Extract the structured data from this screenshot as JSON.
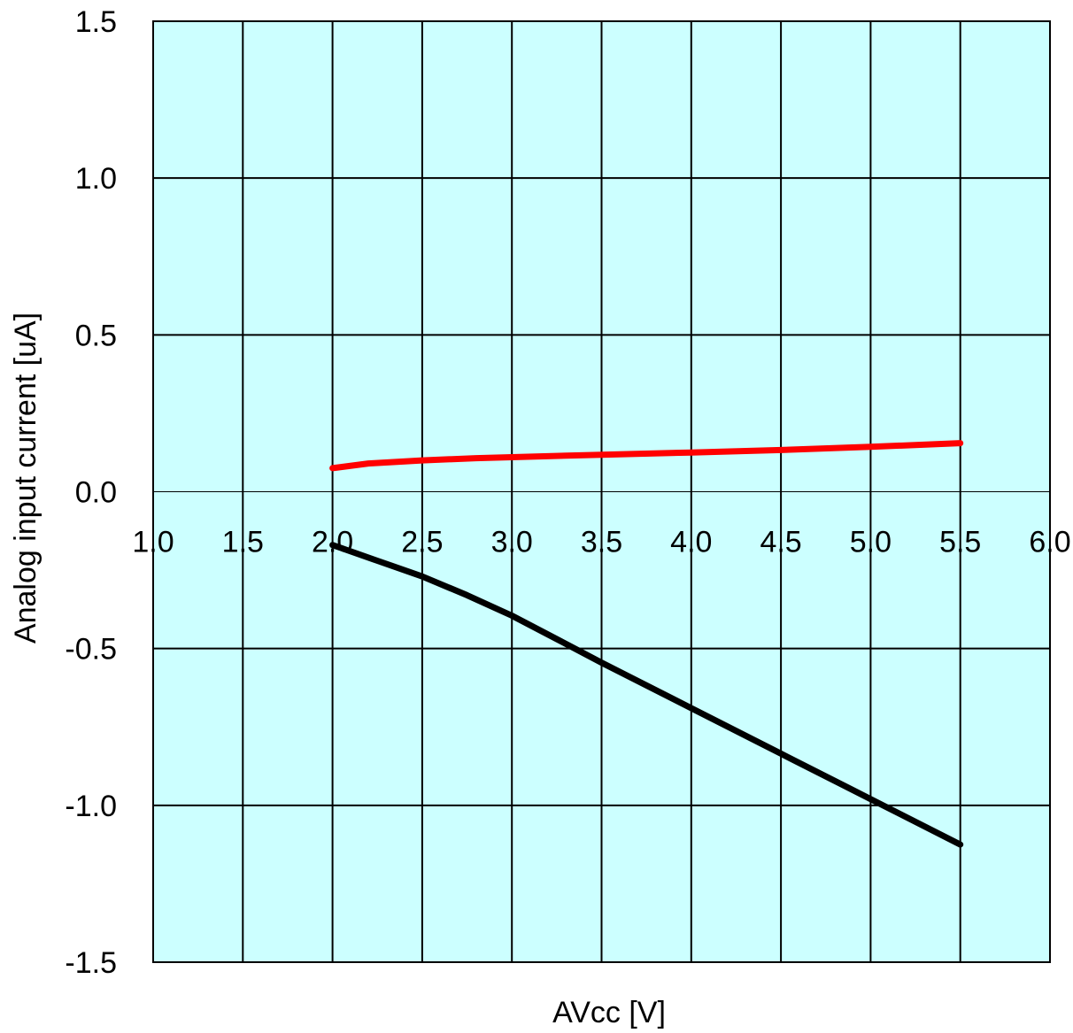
{
  "chart_data": {
    "type": "line",
    "title": "",
    "xlabel": "AVcc [V]",
    "ylabel": "Analog input current [uA]",
    "xlim": [
      1.0,
      6.0
    ],
    "ylim": [
      -1.5,
      1.5
    ],
    "x_ticks": [
      "1.0",
      "1.5",
      "2.0",
      "2.5",
      "3.0",
      "3.5",
      "4.0",
      "4.5",
      "5.0",
      "5.5",
      "6.0"
    ],
    "y_ticks": [
      "1.5",
      "1.0",
      "0.5",
      "0.0",
      "-0.5",
      "-1.0",
      "-1.5"
    ],
    "x_tick_values": [
      1.0,
      1.5,
      2.0,
      2.5,
      3.0,
      3.5,
      4.0,
      4.5,
      5.0,
      5.5,
      6.0
    ],
    "y_tick_values": [
      1.5,
      1.0,
      0.5,
      0.0,
      -0.5,
      -1.0,
      -1.5
    ],
    "grid": true,
    "plot_background": "#ccffff",
    "series": [
      {
        "color": "#ff0000",
        "x": [
          2.0,
          2.2,
          2.5,
          2.8,
          3.0,
          3.5,
          4.0,
          4.5,
          5.0,
          5.5
        ],
        "y": [
          0.075,
          0.09,
          0.1,
          0.107,
          0.11,
          0.118,
          0.125,
          0.133,
          0.143,
          0.155
        ]
      },
      {
        "color": "#000000",
        "x": [
          2.0,
          2.25,
          2.5,
          2.75,
          3.0,
          3.25,
          3.5,
          4.0,
          4.5,
          5.0,
          5.5
        ],
        "y": [
          -0.17,
          -0.22,
          -0.27,
          -0.33,
          -0.395,
          -0.47,
          -0.545,
          -0.69,
          -0.835,
          -0.98,
          -1.125
        ]
      }
    ]
  }
}
